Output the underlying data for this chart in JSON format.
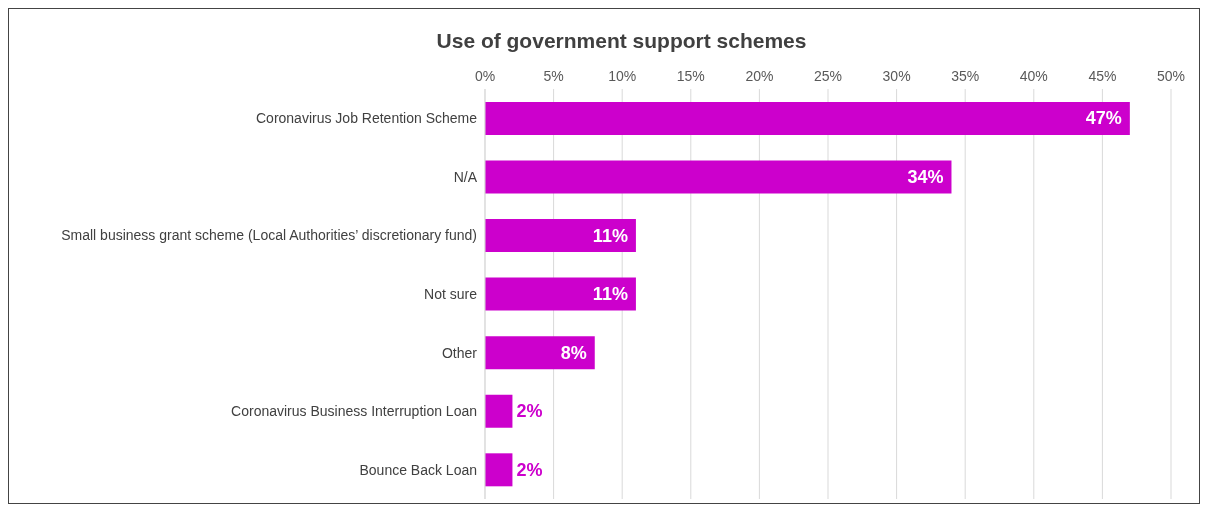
{
  "chart_data": {
    "type": "bar",
    "orientation": "horizontal",
    "title": "Use of government support schemes",
    "categories": [
      "Coronavirus Job Retention Scheme",
      "N/A",
      "Small business grant scheme (Local Authorities’ discretionary fund)",
      "Not sure",
      "Other",
      "Coronavirus Business Interruption Loan",
      "Bounce Back Loan"
    ],
    "values": [
      47,
      34,
      11,
      11,
      8,
      2,
      2
    ],
    "value_labels": [
      "47%",
      "34%",
      "11%",
      "11%",
      "8%",
      "2%",
      "2%"
    ],
    "color": "#cc00cc",
    "xlim": [
      0,
      50
    ],
    "xticks": [
      {
        "value": 0,
        "label": "0%"
      },
      {
        "value": 5,
        "label": "5%"
      },
      {
        "value": 10,
        "label": "10%"
      },
      {
        "value": 15,
        "label": "15%"
      },
      {
        "value": 20,
        "label": "20%"
      },
      {
        "value": 25,
        "label": "25%"
      },
      {
        "value": 30,
        "label": "30%"
      },
      {
        "value": 35,
        "label": "35%"
      },
      {
        "value": 40,
        "label": "40%"
      },
      {
        "value": 45,
        "label": "45%"
      },
      {
        "value": 50,
        "label": "50%"
      }
    ],
    "grid": "x"
  }
}
